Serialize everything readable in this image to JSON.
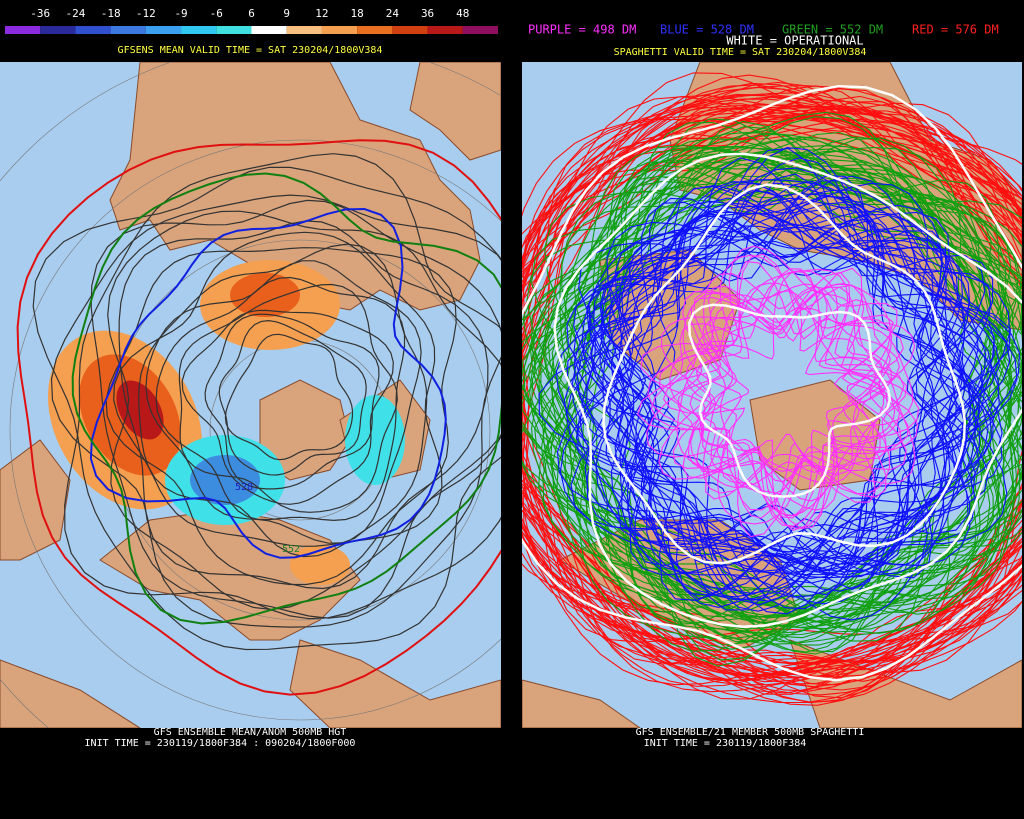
{
  "colorbar": {
    "labels": [
      "-36",
      "-24",
      "-18",
      "-12",
      "-9",
      "-6",
      "6",
      "9",
      "12",
      "18",
      "24",
      "36",
      "48"
    ]
  },
  "left_panel": {
    "title": "GFSENS MEAN VALID TIME = SAT 230204/1800V384",
    "contour_labels": [
      "528",
      "552"
    ],
    "footer": [
      "GFS ENSEMBLE MEAN/ANOM 500MB HGT",
      "INIT TIME = 230119/1800F384 : 090204/1800F000"
    ]
  },
  "right_panel": {
    "legend": [
      "PURPLE = 498 DM",
      "BLUE = 528 DM",
      "GREEN = 552 DM",
      "RED = 576 DM"
    ],
    "operational": "WHITE = OPERATIONAL",
    "title": "SPAGHETTI VALID TIME = SAT 230204/1800V384",
    "footer": [
      "GFS ENSEMBLE/21 MEMBER 500MB SPAGHETTI",
      "INIT TIME = 230119/1800F384"
    ]
  }
}
